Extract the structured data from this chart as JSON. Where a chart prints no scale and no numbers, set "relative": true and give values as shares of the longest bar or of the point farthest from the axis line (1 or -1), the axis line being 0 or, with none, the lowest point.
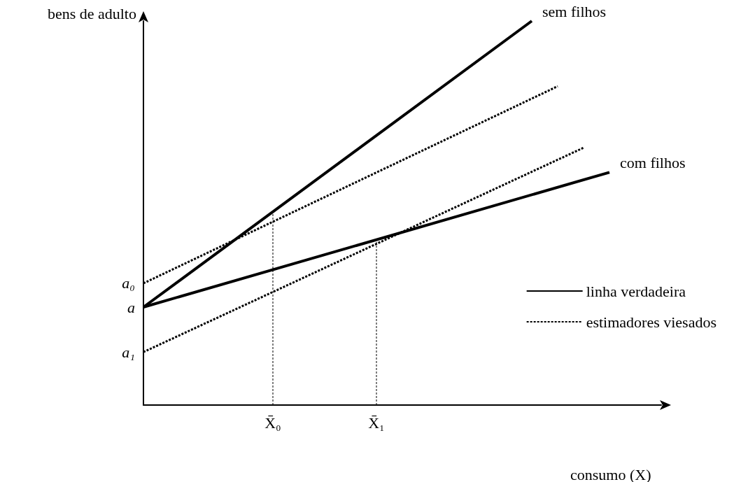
{
  "chart_data": {
    "type": "line",
    "relative": true,
    "xlabel": "consumo (X)",
    "ylabel": "bens de adulto",
    "categories": [
      null,
      null,
      null,
      null,
      null,
      "X̄₀",
      null,
      null,
      null,
      "X̄₁",
      null,
      null,
      null,
      null,
      null,
      null,
      null,
      null,
      null,
      null,
      null
    ],
    "series": [
      {
        "name": "linha verdadeira",
        "color": "#000000",
        "values": [
          0.255,
          null,
          null,
          null,
          null,
          null,
          null,
          null,
          null,
          null,
          null,
          null,
          null,
          null,
          null,
          1,
          null,
          null,
          null,
          null,
          null
        ],
        "line_style": "solid"
      },
      {
        "color": "#000000",
        "values": [
          0.255,
          null,
          null,
          null,
          null,
          null,
          null,
          null,
          null,
          null,
          null,
          null,
          null,
          null,
          null,
          null,
          null,
          null,
          0.606,
          null,
          null
        ],
        "line_style": "solid"
      },
      {
        "name": "estimadores viesados",
        "color": "#000000",
        "values": [
          0.317,
          null,
          null,
          null,
          null,
          null,
          null,
          null,
          null,
          null,
          null,
          null,
          null,
          null,
          null,
          null,
          0.83,
          null,
          null,
          null,
          null
        ],
        "line_style": "dotted"
      },
      {
        "color": "#000000",
        "values": [
          0.138,
          null,
          null,
          null,
          null,
          null,
          null,
          null,
          null,
          null,
          null,
          null,
          null,
          null,
          null,
          null,
          null,
          0.67,
          null,
          null,
          null
        ],
        "line_style": "dotted"
      },
      {
        "color": "#000000",
        "x": [
          "X̄₀",
          "X̄₀"
        ],
        "values": [
          0,
          0.5
        ],
        "line_style": "dotted"
      },
      {
        "color": "#000000",
        "x": [
          "X̄₁",
          "X̄₁"
        ],
        "values": [
          0,
          0.43
        ],
        "line_style": "dotted"
      }
    ],
    "annotations": [
      "sem filhos",
      "com filhos",
      "a₀",
      "a",
      "a₁"
    ],
    "legend": "right",
    "marker": "none",
    "grid": false
  }
}
